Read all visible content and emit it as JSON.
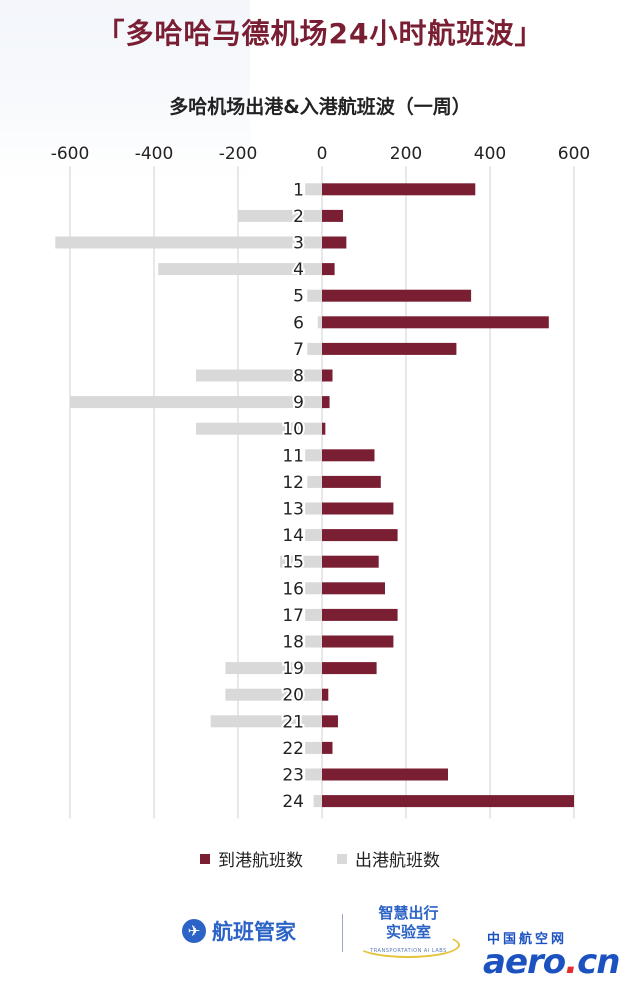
{
  "header": {
    "title": "「多哈哈马德机场24小时航班波」"
  },
  "chart_data": {
    "type": "bar",
    "orientation": "horizontal",
    "title": "多哈机场出港&入港航班波（一周）",
    "categories": [
      "1",
      "2",
      "3",
      "4",
      "5",
      "6",
      "7",
      "8",
      "9",
      "10",
      "11",
      "12",
      "13",
      "14",
      "15",
      "16",
      "17",
      "18",
      "19",
      "20",
      "21",
      "22",
      "23",
      "24"
    ],
    "series": [
      {
        "name": "到港航班数",
        "color": "#7a1f33",
        "values": [
          365,
          50,
          58,
          30,
          355,
          540,
          320,
          25,
          18,
          8,
          125,
          140,
          170,
          180,
          135,
          150,
          180,
          170,
          130,
          15,
          38,
          25,
          300,
          600
        ]
      },
      {
        "name": "出港航班数",
        "color": "#d9d9d9",
        "values": [
          -40,
          -200,
          -635,
          -390,
          -35,
          -10,
          -35,
          -300,
          -600,
          -300,
          -40,
          -35,
          -40,
          -40,
          -100,
          -40,
          -40,
          -40,
          -230,
          -230,
          -265,
          -40,
          -40,
          -20
        ]
      }
    ],
    "x_ticks": [
      "-600",
      "-400",
      "-200",
      "0",
      "200",
      "400",
      "600"
    ],
    "xlim": [
      -650,
      620
    ],
    "grid": true,
    "legend": "bottom-center"
  },
  "footer": {
    "brand1": "航班管家",
    "brand1_icon": "✈",
    "brand2_line1": "智慧出行",
    "brand2_line2": "实验室",
    "brand2_en": "TRANSPORTATION AI LABS",
    "brand3_cn": "中国航空网",
    "brand3_en_a": "aero",
    "brand3_en_dot": ".",
    "brand3_en_b": "cn"
  }
}
